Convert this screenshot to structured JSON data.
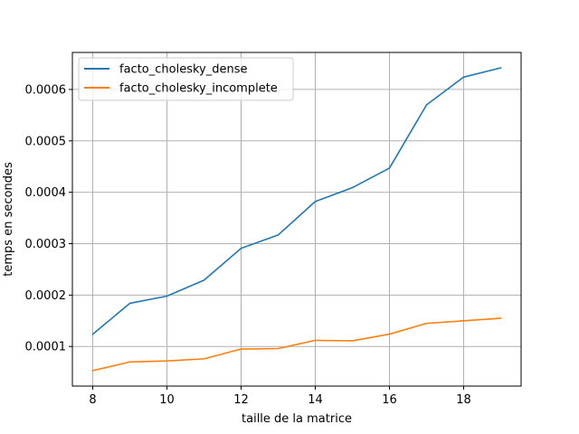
{
  "chart_data": {
    "type": "line",
    "xlabel": "taille de la matrice",
    "ylabel": "temps en secondes",
    "xlim": [
      7.45,
      19.55
    ],
    "ylim": [
      2.3e-05,
      0.000672
    ],
    "x_ticks": [
      8,
      10,
      12,
      14,
      16,
      18
    ],
    "y_ticks": [
      0.0001,
      0.0002,
      0.0003,
      0.0004,
      0.0005,
      0.0006
    ],
    "y_tick_labels": [
      "0.0001",
      "0.0002",
      "0.0003",
      "0.0004",
      "0.0005",
      "0.0006"
    ],
    "grid": true,
    "legend_position": "top-left",
    "x": [
      8,
      9,
      10,
      11,
      12,
      13,
      14,
      15,
      16,
      17,
      18,
      19
    ],
    "series": [
      {
        "name": "facto_cholesky_dense",
        "color": "#1f77b4",
        "values": [
          0.000124,
          0.000184,
          0.000198,
          0.000229,
          0.000291,
          0.000317,
          0.000382,
          0.000409,
          0.000447,
          0.00057,
          0.000624,
          0.000642
        ]
      },
      {
        "name": "facto_cholesky_incomplete",
        "color": "#ff7f0e",
        "values": [
          5.3e-05,
          7e-05,
          7.2e-05,
          7.6e-05,
          9.5e-05,
          9.6e-05,
          0.000112,
          0.000111,
          0.000124,
          0.000145,
          0.00015,
          0.000155
        ]
      }
    ]
  }
}
